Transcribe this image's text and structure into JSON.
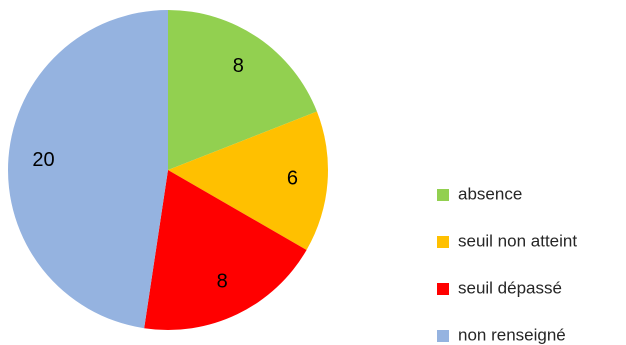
{
  "chart_data": {
    "type": "pie",
    "start": "top",
    "direction": "clockwise",
    "legend_position": "right",
    "slices": [
      {
        "label": "absence",
        "value": 8,
        "color": "#92D050"
      },
      {
        "label": "seuil non atteint",
        "value": 6,
        "color": "#FFC000"
      },
      {
        "label": "seuil dépassé",
        "value": 8,
        "color": "#FF0000"
      },
      {
        "label": "non renseigné",
        "value": 20,
        "color": "#95B3E0"
      }
    ]
  }
}
